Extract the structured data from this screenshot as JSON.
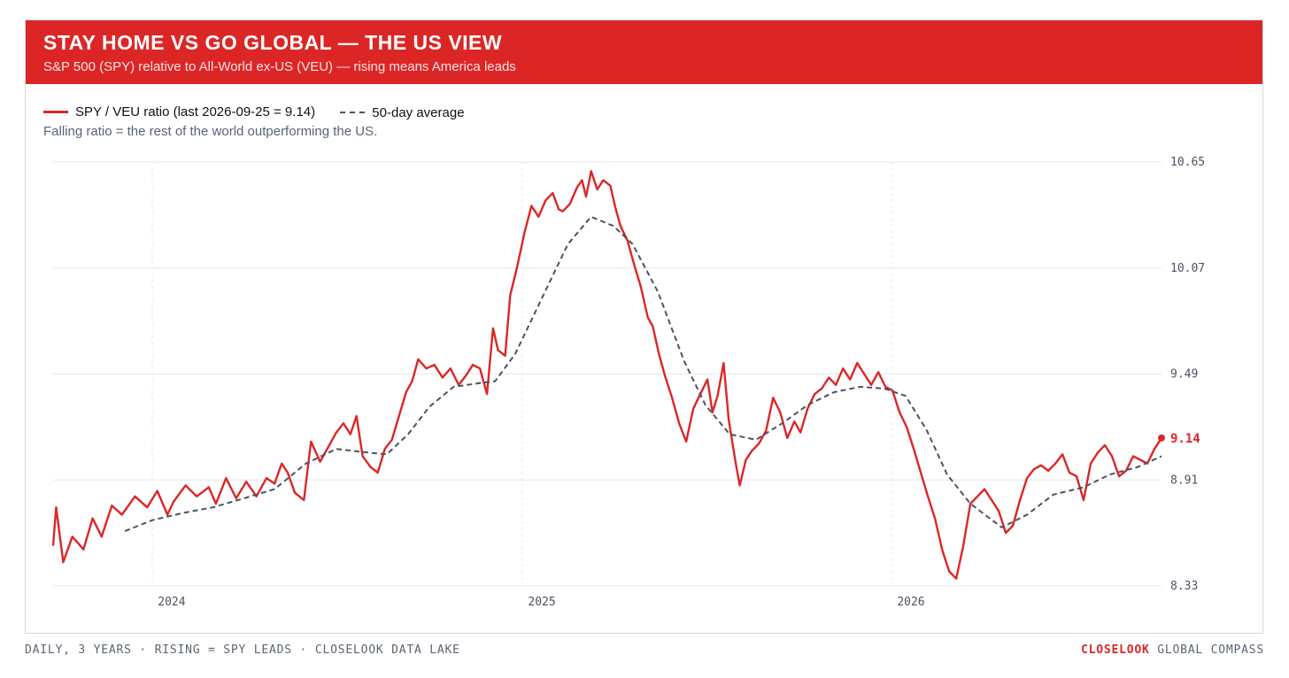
{
  "header": {
    "title": "STAY HOME VS GO GLOBAL — THE US VIEW",
    "subtitle": "S&P 500 (SPY) relative to All-World ex-US (VEU) — rising means America leads"
  },
  "legend": {
    "ratio_label": "SPY / VEU ratio (last 2026-09-25 = 9.14)",
    "ma_label": "50-day average"
  },
  "note": "Falling ratio = the rest of the world outperforming the US.",
  "footer": {
    "left": "DAILY, 3 YEARS · RISING = SPY LEADS · CLOSELOOK DATA LAKE",
    "brand": "CLOSELOOK",
    "right": "GLOBAL COMPASS"
  },
  "colors": {
    "accent": "#dc2626",
    "ma_line": "#4b5263",
    "grid": "#e5e7eb",
    "axis_text": "#4b5263"
  },
  "chart_data": {
    "type": "line",
    "x_range": [
      "2023-09-25",
      "2026-09-25"
    ],
    "ylim": [
      8.33,
      10.65
    ],
    "y_ticks": [
      "8.33",
      "8.91",
      "9.49",
      "10.07",
      "10.65"
    ],
    "x_ticks": [
      {
        "date": "2024-01-01",
        "label": "2024"
      },
      {
        "date": "2025-01-01",
        "label": "2025"
      },
      {
        "date": "2026-01-01",
        "label": "2026"
      }
    ],
    "last_value_label": "9.14",
    "series": [
      {
        "name": "SPY / VEU ratio",
        "style": "solid",
        "color": "#dc2626",
        "points": [
          [
            "2023-09-25",
            8.55
          ],
          [
            "2023-09-28",
            8.76
          ],
          [
            "2023-10-05",
            8.46
          ],
          [
            "2023-10-14",
            8.6
          ],
          [
            "2023-10-25",
            8.53
          ],
          [
            "2023-11-03",
            8.7
          ],
          [
            "2023-11-12",
            8.6
          ],
          [
            "2023-11-22",
            8.77
          ],
          [
            "2023-12-02",
            8.72
          ],
          [
            "2023-12-15",
            8.82
          ],
          [
            "2023-12-27",
            8.76
          ],
          [
            "2024-01-06",
            8.85
          ],
          [
            "2024-01-16",
            8.72
          ],
          [
            "2024-01-22",
            8.79
          ],
          [
            "2024-02-03",
            8.88
          ],
          [
            "2024-02-14",
            8.82
          ],
          [
            "2024-02-26",
            8.87
          ],
          [
            "2024-03-04",
            8.78
          ],
          [
            "2024-03-14",
            8.92
          ],
          [
            "2024-03-24",
            8.81
          ],
          [
            "2024-04-03",
            8.9
          ],
          [
            "2024-04-13",
            8.82
          ],
          [
            "2024-04-23",
            8.92
          ],
          [
            "2024-05-01",
            8.89
          ],
          [
            "2024-05-08",
            9.0
          ],
          [
            "2024-05-14",
            8.95
          ],
          [
            "2024-05-21",
            8.84
          ],
          [
            "2024-05-30",
            8.8
          ],
          [
            "2024-06-06",
            9.12
          ],
          [
            "2024-06-15",
            9.01
          ],
          [
            "2024-06-22",
            9.08
          ],
          [
            "2024-07-01",
            9.17
          ],
          [
            "2024-07-08",
            9.22
          ],
          [
            "2024-07-15",
            9.16
          ],
          [
            "2024-07-21",
            9.26
          ],
          [
            "2024-07-27",
            9.04
          ],
          [
            "2024-08-04",
            8.98
          ],
          [
            "2024-08-11",
            8.95
          ],
          [
            "2024-08-18",
            9.08
          ],
          [
            "2024-08-25",
            9.13
          ],
          [
            "2024-09-01",
            9.26
          ],
          [
            "2024-09-08",
            9.39
          ],
          [
            "2024-09-14",
            9.45
          ],
          [
            "2024-09-20",
            9.57
          ],
          [
            "2024-09-28",
            9.52
          ],
          [
            "2024-10-06",
            9.54
          ],
          [
            "2024-10-14",
            9.47
          ],
          [
            "2024-10-22",
            9.52
          ],
          [
            "2024-10-30",
            9.43
          ],
          [
            "2024-11-06",
            9.48
          ],
          [
            "2024-11-13",
            9.54
          ],
          [
            "2024-11-20",
            9.52
          ],
          [
            "2024-11-27",
            9.38
          ],
          [
            "2024-12-03",
            9.74
          ],
          [
            "2024-12-08",
            9.62
          ],
          [
            "2024-12-15",
            9.59
          ],
          [
            "2024-12-20",
            9.92
          ],
          [
            "2024-12-27",
            10.08
          ],
          [
            "2025-01-03",
            10.26
          ],
          [
            "2025-01-10",
            10.41
          ],
          [
            "2025-01-17",
            10.35
          ],
          [
            "2025-01-24",
            10.44
          ],
          [
            "2025-01-31",
            10.48
          ],
          [
            "2025-02-06",
            10.39
          ],
          [
            "2025-02-10",
            10.38
          ],
          [
            "2025-02-17",
            10.42
          ],
          [
            "2025-02-24",
            10.51
          ],
          [
            "2025-03-01",
            10.55
          ],
          [
            "2025-03-05",
            10.46
          ],
          [
            "2025-03-10",
            10.6
          ],
          [
            "2025-03-16",
            10.5
          ],
          [
            "2025-03-22",
            10.55
          ],
          [
            "2025-03-29",
            10.52
          ],
          [
            "2025-04-03",
            10.4
          ],
          [
            "2025-04-08",
            10.3
          ],
          [
            "2025-04-15",
            10.22
          ],
          [
            "2025-04-22",
            10.08
          ],
          [
            "2025-04-28",
            9.97
          ],
          [
            "2025-05-05",
            9.8
          ],
          [
            "2025-05-10",
            9.75
          ],
          [
            "2025-05-16",
            9.6
          ],
          [
            "2025-05-22",
            9.48
          ],
          [
            "2025-05-29",
            9.36
          ],
          [
            "2025-06-05",
            9.22
          ],
          [
            "2025-06-12",
            9.12
          ],
          [
            "2025-06-19",
            9.3
          ],
          [
            "2025-06-26",
            9.38
          ],
          [
            "2025-07-03",
            9.46
          ],
          [
            "2025-07-08",
            9.28
          ],
          [
            "2025-07-13",
            9.37
          ],
          [
            "2025-07-19",
            9.55
          ],
          [
            "2025-07-24",
            9.24
          ],
          [
            "2025-07-31",
            9.0
          ],
          [
            "2025-08-04",
            8.88
          ],
          [
            "2025-08-10",
            9.02
          ],
          [
            "2025-08-16",
            9.07
          ],
          [
            "2025-08-23",
            9.11
          ],
          [
            "2025-08-30",
            9.18
          ],
          [
            "2025-09-06",
            9.36
          ],
          [
            "2025-09-13",
            9.28
          ],
          [
            "2025-09-20",
            9.14
          ],
          [
            "2025-09-27",
            9.23
          ],
          [
            "2025-10-03",
            9.17
          ],
          [
            "2025-10-10",
            9.3
          ],
          [
            "2025-10-17",
            9.38
          ],
          [
            "2025-10-24",
            9.41
          ],
          [
            "2025-10-31",
            9.47
          ],
          [
            "2025-11-07",
            9.43
          ],
          [
            "2025-11-14",
            9.52
          ],
          [
            "2025-11-21",
            9.46
          ],
          [
            "2025-11-28",
            9.55
          ],
          [
            "2025-12-05",
            9.49
          ],
          [
            "2025-12-12",
            9.43
          ],
          [
            "2025-12-19",
            9.5
          ],
          [
            "2025-12-26",
            9.42
          ],
          [
            "2026-01-02",
            9.4
          ],
          [
            "2026-01-09",
            9.28
          ],
          [
            "2026-01-16",
            9.2
          ],
          [
            "2026-01-23",
            9.08
          ],
          [
            "2026-01-30",
            8.95
          ],
          [
            "2026-02-06",
            8.82
          ],
          [
            "2026-02-13",
            8.7
          ],
          [
            "2026-02-20",
            8.53
          ],
          [
            "2026-02-27",
            8.41
          ],
          [
            "2026-03-06",
            8.37
          ],
          [
            "2026-03-13",
            8.55
          ],
          [
            "2026-03-20",
            8.78
          ],
          [
            "2026-03-27",
            8.82
          ],
          [
            "2026-04-03",
            8.86
          ],
          [
            "2026-04-10",
            8.8
          ],
          [
            "2026-04-17",
            8.74
          ],
          [
            "2026-04-24",
            8.62
          ],
          [
            "2026-05-01",
            8.66
          ],
          [
            "2026-05-08",
            8.8
          ],
          [
            "2026-05-15",
            8.92
          ],
          [
            "2026-05-22",
            8.97
          ],
          [
            "2026-05-29",
            8.99
          ],
          [
            "2026-06-05",
            8.96
          ],
          [
            "2026-06-12",
            9.0
          ],
          [
            "2026-06-19",
            9.05
          ],
          [
            "2026-06-26",
            8.95
          ],
          [
            "2026-07-03",
            8.93
          ],
          [
            "2026-07-10",
            8.8
          ],
          [
            "2026-07-17",
            9.0
          ],
          [
            "2026-07-24",
            9.06
          ],
          [
            "2026-07-31",
            9.1
          ],
          [
            "2026-08-07",
            9.04
          ],
          [
            "2026-08-14",
            8.93
          ],
          [
            "2026-08-21",
            8.96
          ],
          [
            "2026-08-28",
            9.04
          ],
          [
            "2026-09-04",
            9.02
          ],
          [
            "2026-09-11",
            9.0
          ],
          [
            "2026-09-18",
            9.08
          ],
          [
            "2026-09-25",
            9.14
          ]
        ]
      },
      {
        "name": "50-day average",
        "style": "dashed",
        "color": "#4b5263",
        "points": [
          [
            "2023-12-05",
            8.63
          ],
          [
            "2024-01-01",
            8.69
          ],
          [
            "2024-02-01",
            8.73
          ],
          [
            "2024-03-01",
            8.76
          ],
          [
            "2024-04-01",
            8.81
          ],
          [
            "2024-05-01",
            8.86
          ],
          [
            "2024-06-01",
            9.0
          ],
          [
            "2024-07-01",
            9.08
          ],
          [
            "2024-08-01",
            9.06
          ],
          [
            "2024-08-20",
            9.05
          ],
          [
            "2024-09-10",
            9.16
          ],
          [
            "2024-10-01",
            9.31
          ],
          [
            "2024-10-25",
            9.42
          ],
          [
            "2024-11-20",
            9.44
          ],
          [
            "2024-12-05",
            9.45
          ],
          [
            "2024-12-25",
            9.6
          ],
          [
            "2025-01-20",
            9.9
          ],
          [
            "2025-02-15",
            10.2
          ],
          [
            "2025-03-10",
            10.35
          ],
          [
            "2025-04-01",
            10.3
          ],
          [
            "2025-04-20",
            10.2
          ],
          [
            "2025-05-15",
            9.94
          ],
          [
            "2025-06-10",
            9.56
          ],
          [
            "2025-07-01",
            9.32
          ],
          [
            "2025-07-25",
            9.16
          ],
          [
            "2025-08-20",
            9.13
          ],
          [
            "2025-09-15",
            9.22
          ],
          [
            "2025-10-10",
            9.32
          ],
          [
            "2025-11-05",
            9.39
          ],
          [
            "2025-12-01",
            9.42
          ],
          [
            "2025-12-25",
            9.41
          ],
          [
            "2026-01-15",
            9.37
          ],
          [
            "2026-02-05",
            9.18
          ],
          [
            "2026-02-25",
            8.94
          ],
          [
            "2026-03-20",
            8.78
          ],
          [
            "2026-04-20",
            8.65
          ],
          [
            "2026-05-15",
            8.72
          ],
          [
            "2026-06-10",
            8.83
          ],
          [
            "2026-07-10",
            8.87
          ],
          [
            "2026-08-05",
            8.94
          ],
          [
            "2026-09-01",
            8.98
          ],
          [
            "2026-09-25",
            9.04
          ]
        ]
      }
    ]
  }
}
